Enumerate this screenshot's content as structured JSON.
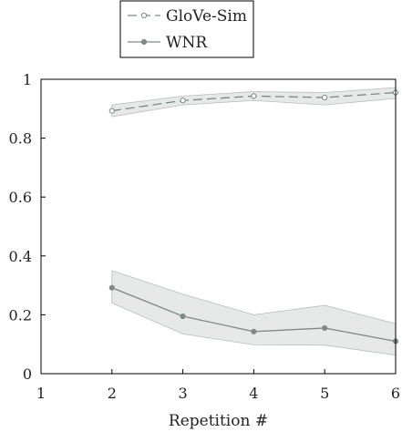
{
  "chart_data": {
    "type": "line",
    "xlabel": "Repetition #",
    "ylabel": "",
    "xlim": [
      1,
      6
    ],
    "ylim": [
      0,
      1
    ],
    "xticks": [
      1,
      2,
      3,
      4,
      5,
      6
    ],
    "yticks": [
      0,
      0.2,
      0.4,
      0.6,
      0.8,
      1
    ],
    "ytick_labels": [
      "0",
      "0.2",
      "0.4",
      "0.6",
      "0.8",
      "1"
    ],
    "grid": false,
    "legend_position": "top-center",
    "series": [
      {
        "name": "GloVe-Sim",
        "style": "dashed",
        "marker": "open-circle",
        "color": "#7a8b84",
        "x": [
          2,
          3,
          4,
          5,
          6
        ],
        "values": [
          0.893,
          0.928,
          0.943,
          0.938,
          0.955
        ],
        "band_low": [
          0.873,
          0.913,
          0.928,
          0.913,
          0.935
        ],
        "band_high": [
          0.913,
          0.943,
          0.958,
          0.955,
          0.972
        ]
      },
      {
        "name": "WNR",
        "style": "solid",
        "marker": "filled-circle",
        "color": "#808a87",
        "x": [
          2,
          3,
          4,
          5,
          6
        ],
        "values": [
          0.292,
          0.195,
          0.143,
          0.155,
          0.11
        ],
        "band_low": [
          0.24,
          0.135,
          0.098,
          0.097,
          0.063
        ],
        "band_high": [
          0.35,
          0.27,
          0.2,
          0.232,
          0.17
        ]
      }
    ],
    "band_color": "#e6e9e8"
  }
}
